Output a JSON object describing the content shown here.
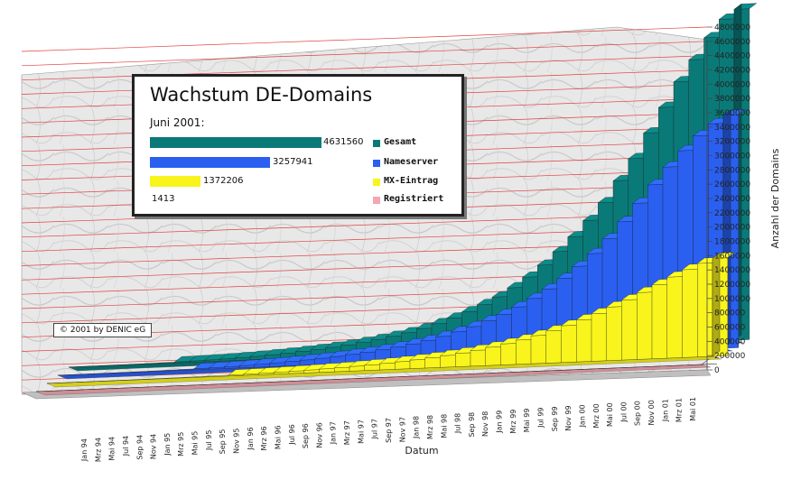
{
  "colors": {
    "gesamt": "#0a7a78",
    "nameserver": "#2a5ff0",
    "mx": "#f8f41c",
    "registriert": "#f4a7b0",
    "grid": "#e04040",
    "marble": "#e6e6e6"
  },
  "legend": {
    "title": "Wachstum DE-Domains",
    "subtitle": "Juni 2001:",
    "entries": [
      {
        "label": "Gesamt",
        "value": "4631560",
        "color": "#0a7a78"
      },
      {
        "label": "Nameserver",
        "value": "3257941",
        "color": "#2a5ff0"
      },
      {
        "label": "MX-Eintrag",
        "value": "1372206",
        "color": "#f8f41c"
      },
      {
        "label": "Registriert",
        "value": "1413",
        "color": "#f4a7b0"
      }
    ]
  },
  "copyright": "© 2001 by DENIC eG",
  "chart_data": {
    "type": "bar",
    "variant": "3d-depth",
    "xlabel": "Datum",
    "ylabel": "Anzahl der Domains",
    "ylim": [
      0,
      4800000
    ],
    "yticks": [
      0,
      200000,
      400000,
      600000,
      800000,
      1000000,
      1200000,
      1400000,
      1600000,
      1800000,
      2000000,
      2200000,
      2400000,
      2600000,
      2800000,
      3000000,
      3200000,
      3400000,
      3600000,
      3800000,
      4000000,
      4200000,
      4400000,
      4600000,
      4800000
    ],
    "grid": true,
    "categories": [
      "Jan 94",
      "Mrz 94",
      "Mai 94",
      "Jul 94",
      "Sep 94",
      "Nov 94",
      "Jan 95",
      "Mrz 95",
      "Mai 95",
      "Jul 95",
      "Sep 95",
      "Nov 95",
      "Jan 96",
      "Mrz 96",
      "Mai 96",
      "Jul 96",
      "Sep 96",
      "Nov 96",
      "Jan 97",
      "Mrz 97",
      "Mai 97",
      "Jul 97",
      "Sep 97",
      "Nov 97",
      "Jan 98",
      "Mrz 98",
      "Mai 98",
      "Jul 98",
      "Sep 98",
      "Nov 98",
      "Jan 99",
      "Mrz 99",
      "Mai 99",
      "Jul 99",
      "Sep 99",
      "Nov 99",
      "Jan 00",
      "Mrz 00",
      "Mai 00",
      "Jul 00",
      "Sep 00",
      "Nov 00",
      "Jan 01",
      "Mrz 01",
      "Mai 01"
    ],
    "series": [
      {
        "name": "Gesamt",
        "values": [
          1400,
          2000,
          3000,
          4200,
          5800,
          7700,
          10000,
          13000,
          17000,
          22000,
          28000,
          36000,
          46000,
          58000,
          72000,
          88000,
          106000,
          128000,
          152000,
          180000,
          212000,
          248000,
          290000,
          340000,
          400000,
          470000,
          550000,
          640000,
          740000,
          860000,
          1000000,
          1160000,
          1340000,
          1540000,
          1760000,
          2000000,
          2300000,
          2600000,
          2950000,
          3300000,
          3650000,
          3950000,
          4250000,
          4500000,
          4631560
        ]
      },
      {
        "name": "Nameserver",
        "values": [
          1000,
          1400,
          2100,
          3000,
          4100,
          5400,
          7000,
          9000,
          12000,
          15000,
          19500,
          25000,
          32000,
          40000,
          50000,
          61000,
          74000,
          89000,
          106000,
          126000,
          148000,
          174000,
          203000,
          237000,
          278000,
          326000,
          382000,
          446000,
          518000,
          600000,
          696000,
          806000,
          930000,
          1070000,
          1230000,
          1400000,
          1600000,
          1830000,
          2080000,
          2330000,
          2570000,
          2790000,
          2990000,
          3150000,
          3257941
        ]
      },
      {
        "name": "MX-Eintrag",
        "values": [
          400,
          600,
          900,
          1300,
          1800,
          2400,
          3100,
          4000,
          5300,
          6800,
          8600,
          11000,
          14000,
          17500,
          22000,
          27000,
          32500,
          39000,
          46500,
          55000,
          65000,
          76000,
          89000,
          104000,
          121000,
          141000,
          164000,
          190000,
          220000,
          255000,
          295000,
          340000,
          392000,
          450000,
          515000,
          587000,
          665000,
          750000,
          840000,
          935000,
          1035000,
          1135000,
          1230000,
          1310000,
          1372206
        ]
      },
      {
        "name": "Registriert",
        "values": [
          0,
          0,
          0,
          0,
          0,
          0,
          0,
          0,
          0,
          0,
          0,
          0,
          0,
          0,
          0,
          0,
          0,
          0,
          0,
          0,
          0,
          0,
          0,
          0,
          0,
          0,
          0,
          0,
          0,
          0,
          0,
          0,
          0,
          0,
          0,
          0,
          0,
          0,
          0,
          0,
          0,
          0,
          0,
          1000,
          1413
        ]
      }
    ]
  }
}
